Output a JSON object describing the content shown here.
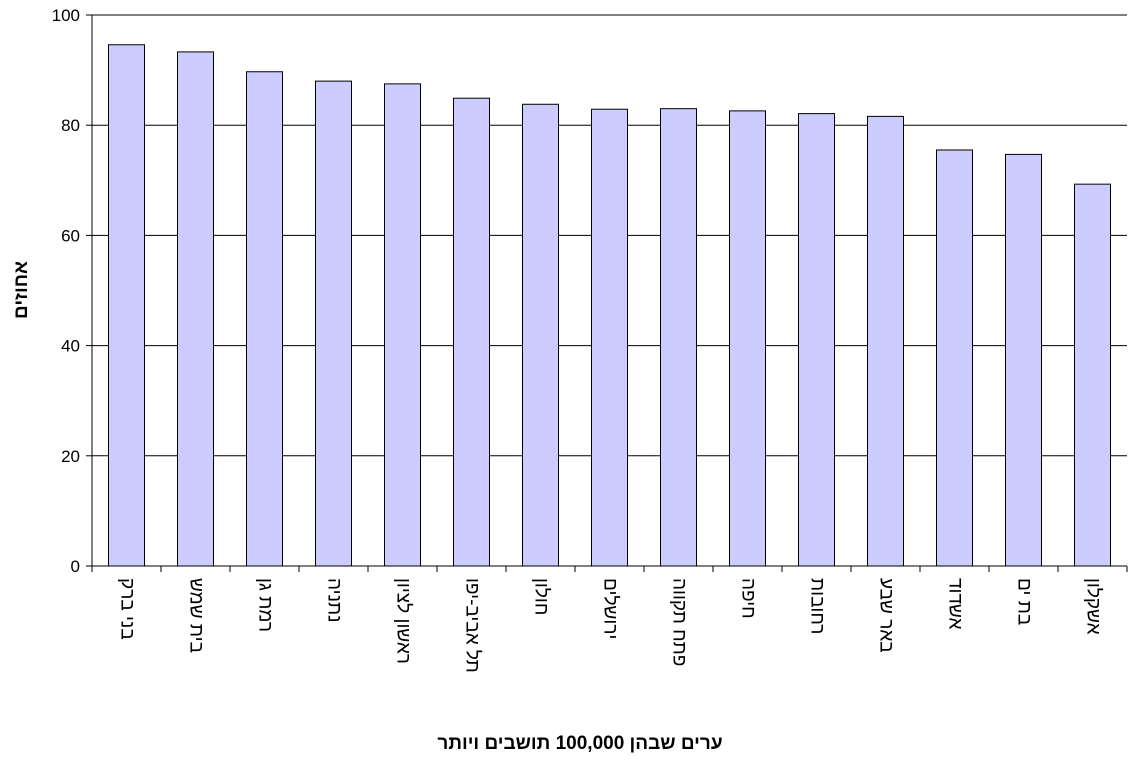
{
  "chart_data": {
    "type": "bar",
    "title": "",
    "xlabel": "ערים שבהן 100,000 תושבים ויותר",
    "ylabel": "אחוזים",
    "ylim": [
      0,
      100
    ],
    "yticks": [
      0,
      20,
      40,
      60,
      80,
      100
    ],
    "grid": true,
    "bar_color": "#ccccff",
    "categories": [
      "בני ברק",
      "בית שמש",
      "רמת גן",
      "נתניה",
      "ראשון לציון",
      "תל אביב-יפו",
      "חולון",
      "ירושלים",
      "פתח תקווה",
      "חיפה",
      "רחובות",
      "באר שבע",
      "אשדוד",
      "בת ים",
      "אשקלון"
    ],
    "values": [
      94.6,
      93.3,
      89.7,
      88.0,
      87.5,
      84.9,
      83.8,
      82.9,
      83.0,
      82.6,
      82.1,
      81.6,
      75.5,
      74.7,
      69.3
    ]
  }
}
